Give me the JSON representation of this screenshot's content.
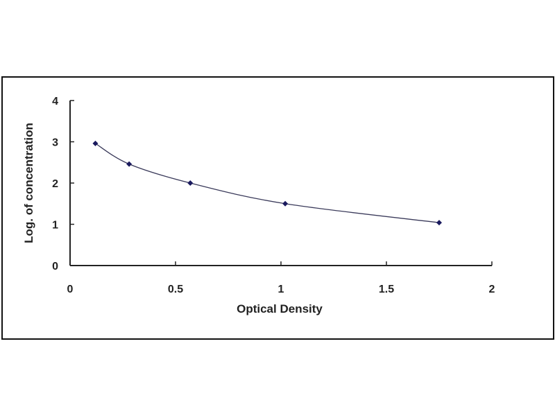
{
  "chart_data": {
    "type": "scatter",
    "title": "",
    "xlabel": "Optical Density",
    "ylabel": "Log. of concentration",
    "xlim": [
      0,
      2
    ],
    "ylim": [
      0,
      4
    ],
    "xticks": [
      "0",
      "0.5",
      "1",
      "1.5",
      "2"
    ],
    "yticks": [
      "0",
      "1",
      "2",
      "3",
      "4"
    ],
    "grid": false,
    "legend": "none",
    "trendline": "smooth curve through points",
    "series": [
      {
        "x": [
          0.12,
          0.28,
          0.57,
          1.02,
          1.75
        ],
        "y": [
          2.96,
          2.46,
          2.0,
          1.5,
          1.04
        ],
        "color": "#1a1a5e"
      }
    ],
    "line_color": "#3a3a5a"
  }
}
